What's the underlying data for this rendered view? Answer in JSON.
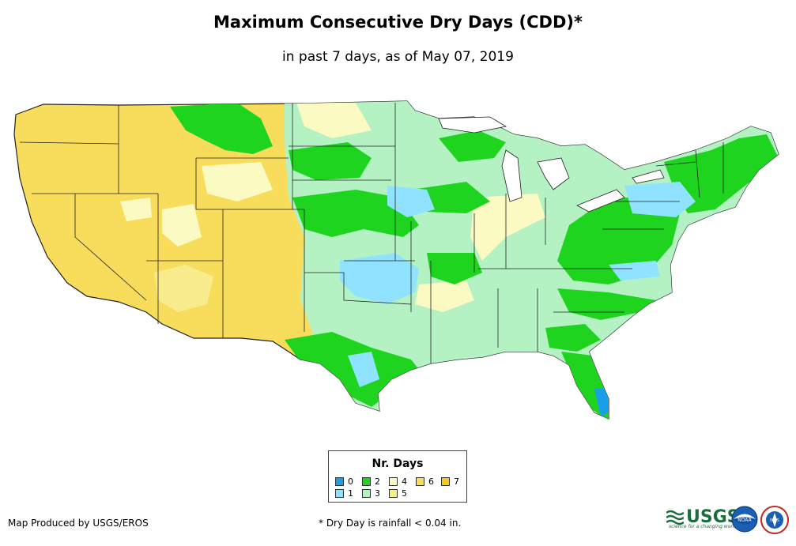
{
  "header": {
    "title": "Maximum Consecutive Dry Days (CDD)*",
    "subtitle": "in past 7 days, as of May 07, 2019"
  },
  "legend": {
    "title": "Nr. Days",
    "items": [
      {
        "label": "0",
        "color": "#1a9ee8"
      },
      {
        "label": "1",
        "color": "#8fe3ff"
      },
      {
        "label": "2",
        "color": "#1fd41f"
      },
      {
        "label": "3",
        "color": "#b4f2c4"
      },
      {
        "label": "4",
        "color": "#fafac2"
      },
      {
        "label": "5",
        "color": "#f8ec8c"
      },
      {
        "label": "6",
        "color": "#f8dc5c"
      },
      {
        "label": "7",
        "color": "#f8c81e"
      }
    ]
  },
  "footer": {
    "credit": "Map Produced by USGS/EROS",
    "footnote": "* Dry Day is rainfall < 0.04 in."
  },
  "logos": {
    "usgs": "USGS",
    "usgs_tagline": "science for a changing world",
    "noaa": "NOAA",
    "nws": "NWS"
  }
}
